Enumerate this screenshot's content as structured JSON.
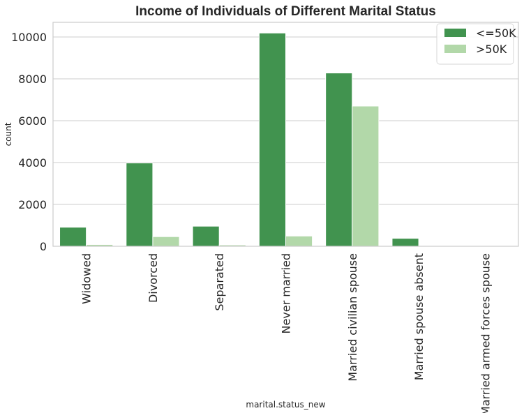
{
  "chart_data": {
    "type": "bar",
    "title": "Income of Individuals of Different Marital Status",
    "xlabel": "marital.status_new",
    "ylabel": "count",
    "categories": [
      "Widowed",
      "Divorced",
      "Separated",
      "Never married",
      "Married civilian spouse",
      "Married spouse absent",
      "Married armed forces spouse"
    ],
    "series": [
      {
        "name": "<=50K",
        "color": "#41934f",
        "values": [
          910,
          3980,
          960,
          10190,
          8280,
          380,
          10
        ]
      },
      {
        "name": ">50K",
        "color": "#b2d8a9",
        "values": [
          85,
          460,
          65,
          490,
          6700,
          30,
          10
        ]
      }
    ],
    "ylim": [
      0,
      10700
    ],
    "yticks": [
      0,
      2000,
      4000,
      6000,
      8000,
      10000
    ],
    "grid": true,
    "legend_position": "top-right"
  }
}
